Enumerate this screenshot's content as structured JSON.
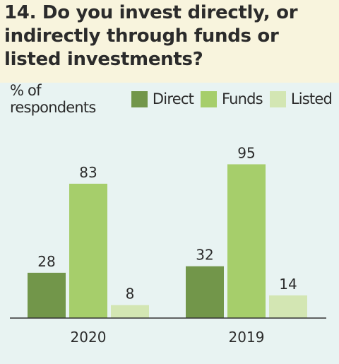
{
  "title": "14. Do you invest directly, or indirectly through funds or listed investments?",
  "chart_data": {
    "type": "bar",
    "ylabel": "% of respondents",
    "categories": [
      "2020",
      "2019"
    ],
    "series": [
      {
        "name": "Direct",
        "values": [
          28,
          32
        ],
        "color": "#72964a"
      },
      {
        "name": "Funds",
        "values": [
          83,
          95
        ],
        "color": "#a6ce6b"
      },
      {
        "name": "Listed",
        "values": [
          8,
          14
        ],
        "color": "#d3e6b3"
      }
    ],
    "ylim": [
      0,
      100
    ],
    "grid": false,
    "legend": "top"
  }
}
